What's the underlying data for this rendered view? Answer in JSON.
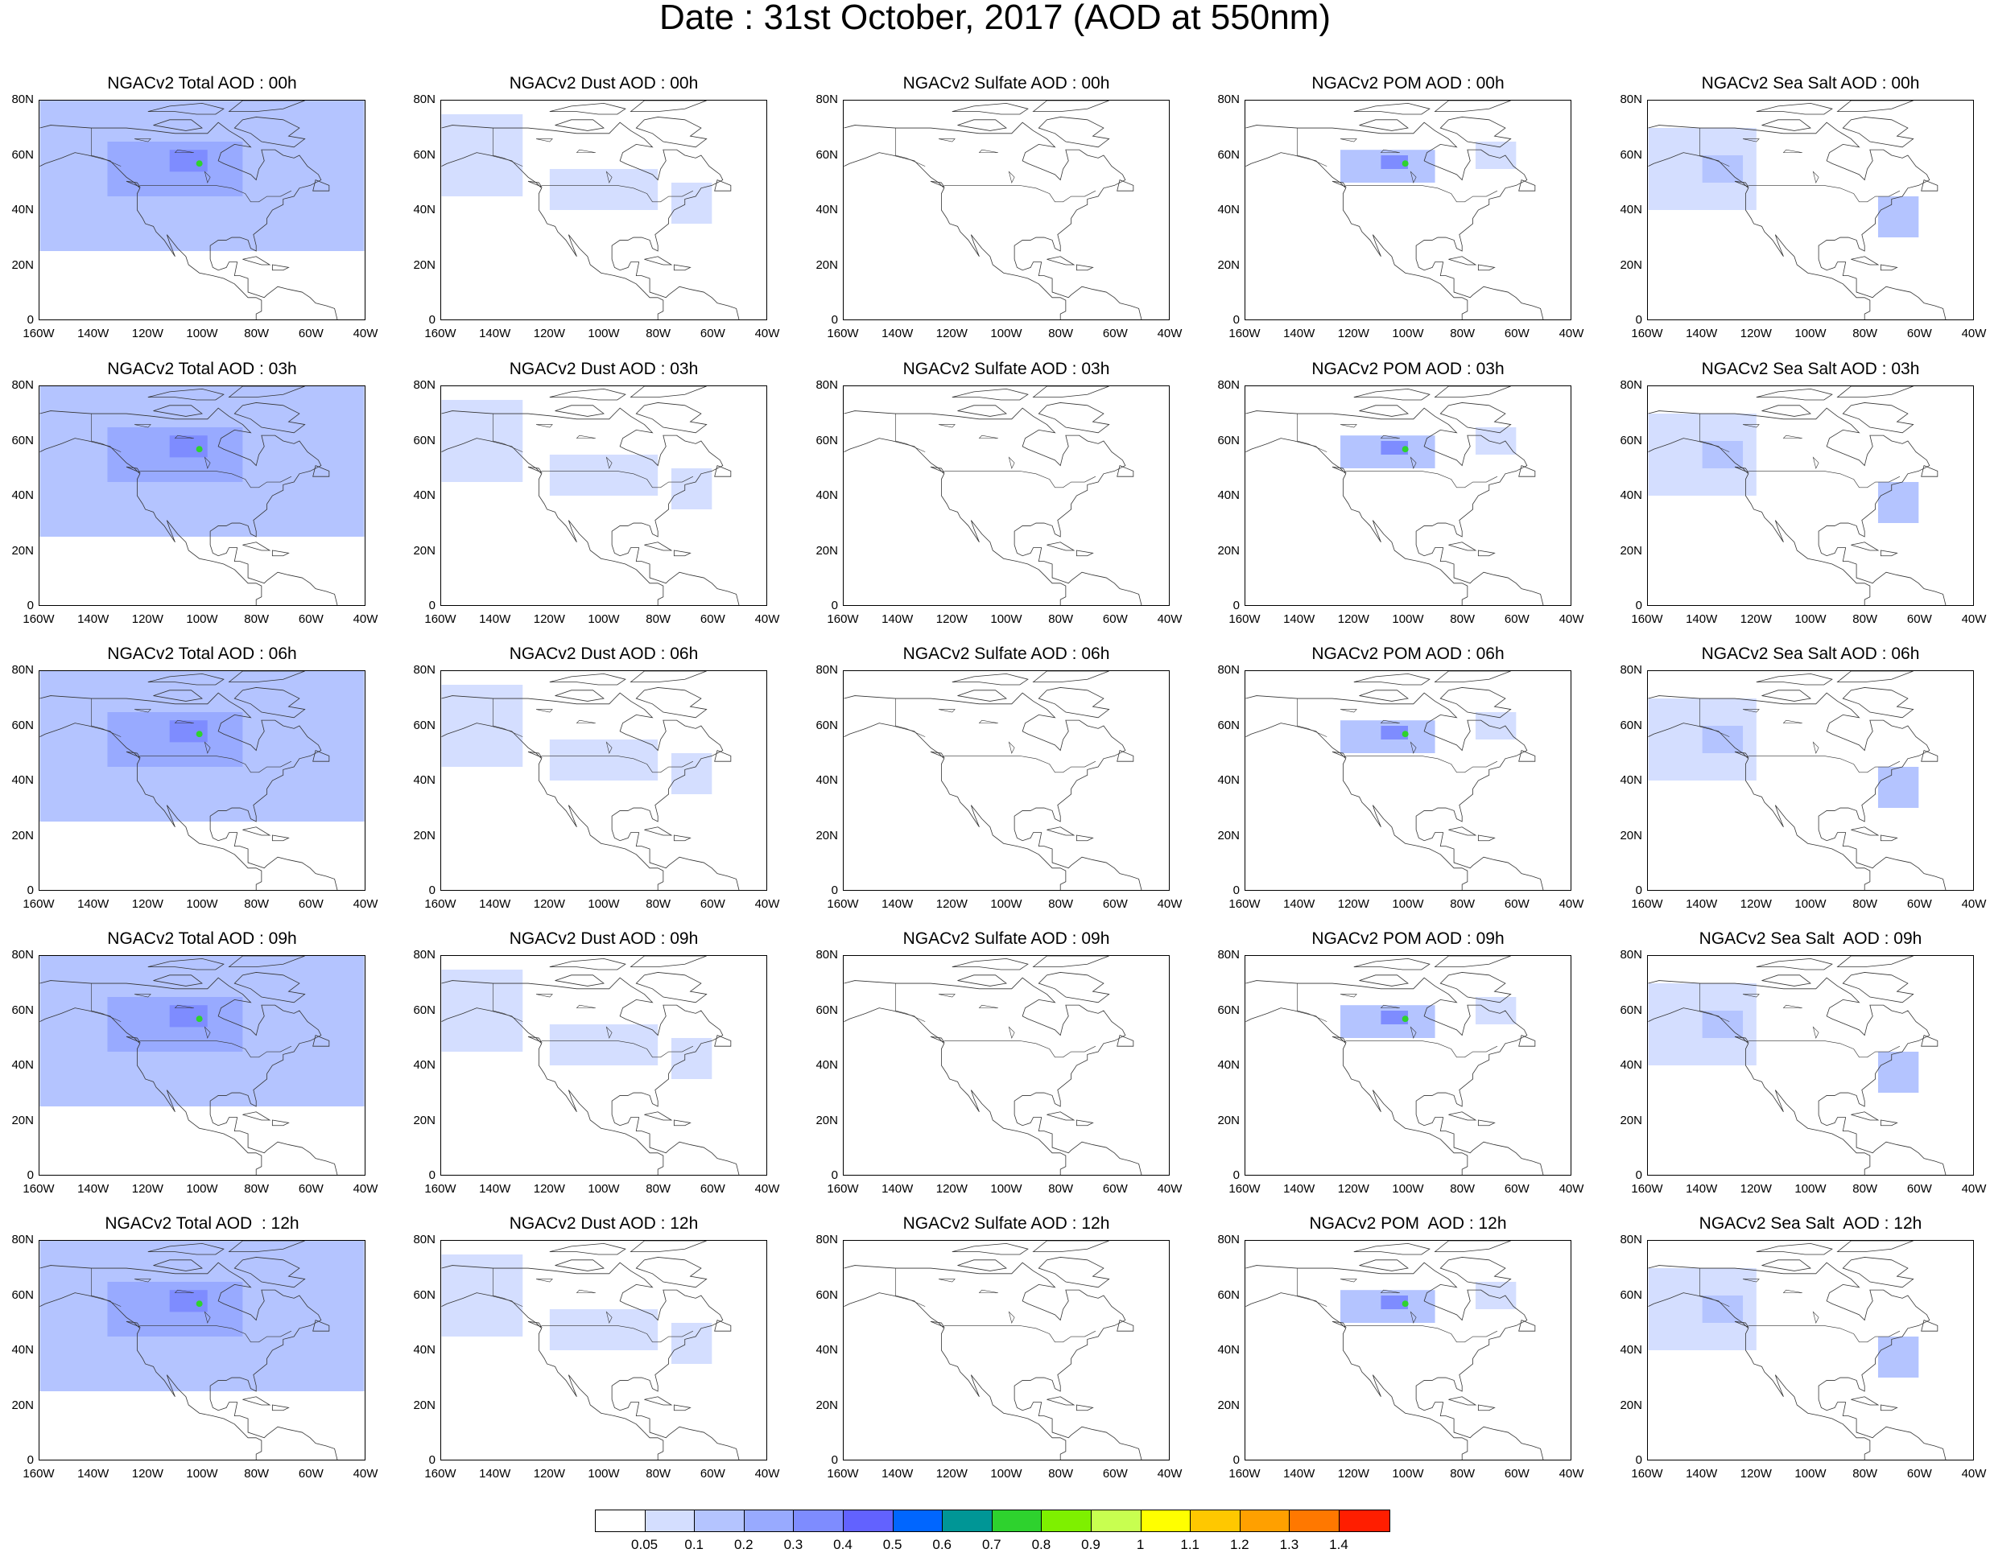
{
  "title": "Date : 31st October, 2017 (AOD at 550nm)",
  "x_ticks": [
    "160W",
    "140W",
    "120W",
    "100W",
    "80W",
    "60W",
    "40W"
  ],
  "y_ticks": [
    "80N",
    "60N",
    "40N",
    "20N",
    "0"
  ],
  "lon_range": [
    -160,
    -40
  ],
  "lat_range": [
    0,
    80
  ],
  "colorbar": {
    "labels": [
      "0.05",
      "0.1",
      "0.2",
      "0.3",
      "0.4",
      "0.5",
      "0.6",
      "0.7",
      "0.8",
      "0.9",
      "1",
      "1.1",
      "1.2",
      "1.3",
      "1.4"
    ],
    "colors": [
      "#ffffff",
      "#d4deff",
      "#b4c4ff",
      "#98aaff",
      "#7e8cff",
      "#6262ff",
      "#0066ff",
      "#009696",
      "#2ed22e",
      "#7ef000",
      "#c8ff50",
      "#ffff00",
      "#ffc800",
      "#ffa000",
      "#ff7800",
      "#ff1e00"
    ]
  },
  "species": [
    {
      "key": "total",
      "color_level": 1.0
    },
    {
      "key": "dust",
      "color_level": 0.45
    },
    {
      "key": "sulfate",
      "color_level": 0.05
    },
    {
      "key": "pom",
      "color_level": 0.5
    },
    {
      "key": "seasalt",
      "color_level": 0.55
    }
  ],
  "panels": [
    [
      "NGACv2 Total AOD : 00h",
      "NGACv2 Dust AOD : 00h",
      "NGACv2 Sulfate AOD : 00h",
      "NGACv2 POM AOD : 00h",
      "NGACv2 Sea Salt AOD : 00h"
    ],
    [
      "NGACv2 Total AOD : 03h",
      "NGACv2 Dust AOD : 03h",
      "NGACv2 Sulfate AOD : 03h",
      "NGACv2 POM AOD : 03h",
      "NGACv2 Sea Salt AOD : 03h"
    ],
    [
      "NGACv2 Total AOD : 06h",
      "NGACv2 Dust AOD : 06h",
      "NGACv2 Sulfate AOD : 06h",
      "NGACv2 POM AOD : 06h",
      "NGACv2 Sea Salt AOD : 06h"
    ],
    [
      "NGACv2 Total AOD : 09h",
      "NGACv2 Dust AOD : 09h",
      "NGACv2 Sulfate AOD : 09h",
      "NGACv2 POM AOD : 09h",
      "NGACv2 Sea Salt  AOD : 09h"
    ],
    [
      "NGACv2 Total AOD  : 12h",
      "NGACv2 Dust AOD : 12h",
      "NGACv2 Sulfate AOD : 12h",
      "NGACv2 POM  AOD : 12h",
      "NGACv2 Sea Salt  AOD : 12h"
    ]
  ]
}
